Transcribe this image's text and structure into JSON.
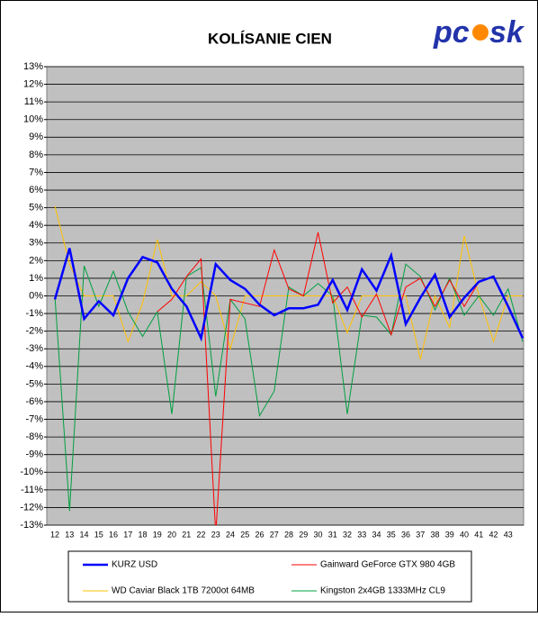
{
  "chart_data": {
    "type": "line",
    "title": "KOLÍSANIE CIEN",
    "logo_left": "pc",
    "logo_right": "sk",
    "categories": [
      "12",
      "13",
      "14",
      "15",
      "16",
      "17",
      "18",
      "19",
      "20",
      "21",
      "22",
      "23",
      "24",
      "25",
      "26",
      "27",
      "28",
      "29",
      "30",
      "31",
      "32",
      "33",
      "34",
      "35",
      "36",
      "37",
      "38",
      "39",
      "40",
      "41",
      "42",
      "43",
      null
    ],
    "series": [
      {
        "name": "KURZ USD",
        "color": "#0000ff",
        "width": 2.5,
        "values": [
          -0.2,
          2.7,
          -1.3,
          -0.3,
          -1.1,
          1.0,
          2.2,
          1.9,
          0.4,
          -0.6,
          -2.4,
          1.8,
          0.9,
          0.4,
          -0.5,
          -1.1,
          -0.7,
          -0.7,
          -0.5,
          0.9,
          -0.8,
          1.5,
          0.3,
          2.3,
          -1.6,
          -0.1,
          1.2,
          -1.2,
          -0.1,
          0.8,
          1.1,
          -0.6,
          -2.4
        ]
      },
      {
        "name": "Gainward GeForce GTX 980 4GB",
        "color": "#ff0000",
        "width": 1,
        "values": [
          null,
          null,
          null,
          null,
          null,
          null,
          null,
          -0.9,
          -0.2,
          1.1,
          2.1,
          -13.5,
          -0.2,
          -0.4,
          -0.6,
          2.6,
          0.4,
          0.0,
          3.6,
          -0.4,
          0.5,
          -1.2,
          0.1,
          -2.2,
          0.5,
          1.0,
          -0.6,
          0.9,
          -0.6,
          0.8,
          null,
          null,
          null
        ]
      },
      {
        "name": "WD Caviar Black 1TB 7200ot 64MB",
        "color": "#ffc000",
        "width": 1,
        "values": [
          5.1,
          1.8,
          0.0,
          0.0,
          0.0,
          -2.6,
          -0.4,
          3.2,
          0.0,
          0.0,
          0.8,
          0.0,
          -3.0,
          0.0,
          0.0,
          0.0,
          0.0,
          0.0,
          0.0,
          0.0,
          -2.1,
          0.0,
          0.0,
          0.0,
          0.0,
          -3.6,
          0.0,
          -1.8,
          3.4,
          0.0,
          -2.6,
          0.0,
          0.0
        ]
      },
      {
        "name": "Kingston 2x4GB 1333MHz CL9",
        "color": "#00a040",
        "width": 1,
        "values": [
          0.0,
          -12.2,
          1.7,
          -0.6,
          1.4,
          -0.9,
          -2.3,
          -0.9,
          -6.7,
          1.1,
          1.6,
          -5.7,
          -0.2,
          -1.3,
          -6.8,
          -5.4,
          0.5,
          0.0,
          0.7,
          0.0,
          -6.7,
          -1.1,
          -1.2,
          -2.2,
          1.8,
          1.1,
          -0.8,
          1.0,
          -1.1,
          0.0,
          -1.1,
          0.4,
          -2.6
        ]
      }
    ],
    "ylim": [
      -13,
      13
    ],
    "yticks": [
      {
        "value": -13,
        "label": "-13%"
      },
      {
        "value": -12,
        "label": "-12%"
      },
      {
        "value": -11,
        "label": "-11%"
      },
      {
        "value": -10,
        "label": "-10%"
      },
      {
        "value": -9,
        "label": "-9%"
      },
      {
        "value": -8,
        "label": "-8%"
      },
      {
        "value": -7,
        "label": "-7%"
      },
      {
        "value": -6,
        "label": "-6%"
      },
      {
        "value": -5,
        "label": "-5%"
      },
      {
        "value": -4,
        "label": "-4%"
      },
      {
        "value": -3,
        "label": "-3%"
      },
      {
        "value": -2,
        "label": "-2%"
      },
      {
        "value": -1,
        "label": "-1%"
      },
      {
        "value": 0,
        "label": "0%"
      },
      {
        "value": 1,
        "label": "1%"
      },
      {
        "value": 2,
        "label": "2%"
      },
      {
        "value": 3,
        "label": "3%"
      },
      {
        "value": 4,
        "label": "4%"
      },
      {
        "value": 5,
        "label": "5%"
      },
      {
        "value": 6,
        "label": "6%"
      },
      {
        "value": 7,
        "label": "7%"
      },
      {
        "value": 8,
        "label": "8%"
      },
      {
        "value": 9,
        "label": "9%"
      },
      {
        "value": 10,
        "label": "10%"
      },
      {
        "value": 11,
        "label": "11%"
      },
      {
        "value": 12,
        "label": "12%"
      },
      {
        "value": 13,
        "label": "13%"
      }
    ],
    "grid": true,
    "plot_background": "#c0c0c0"
  }
}
